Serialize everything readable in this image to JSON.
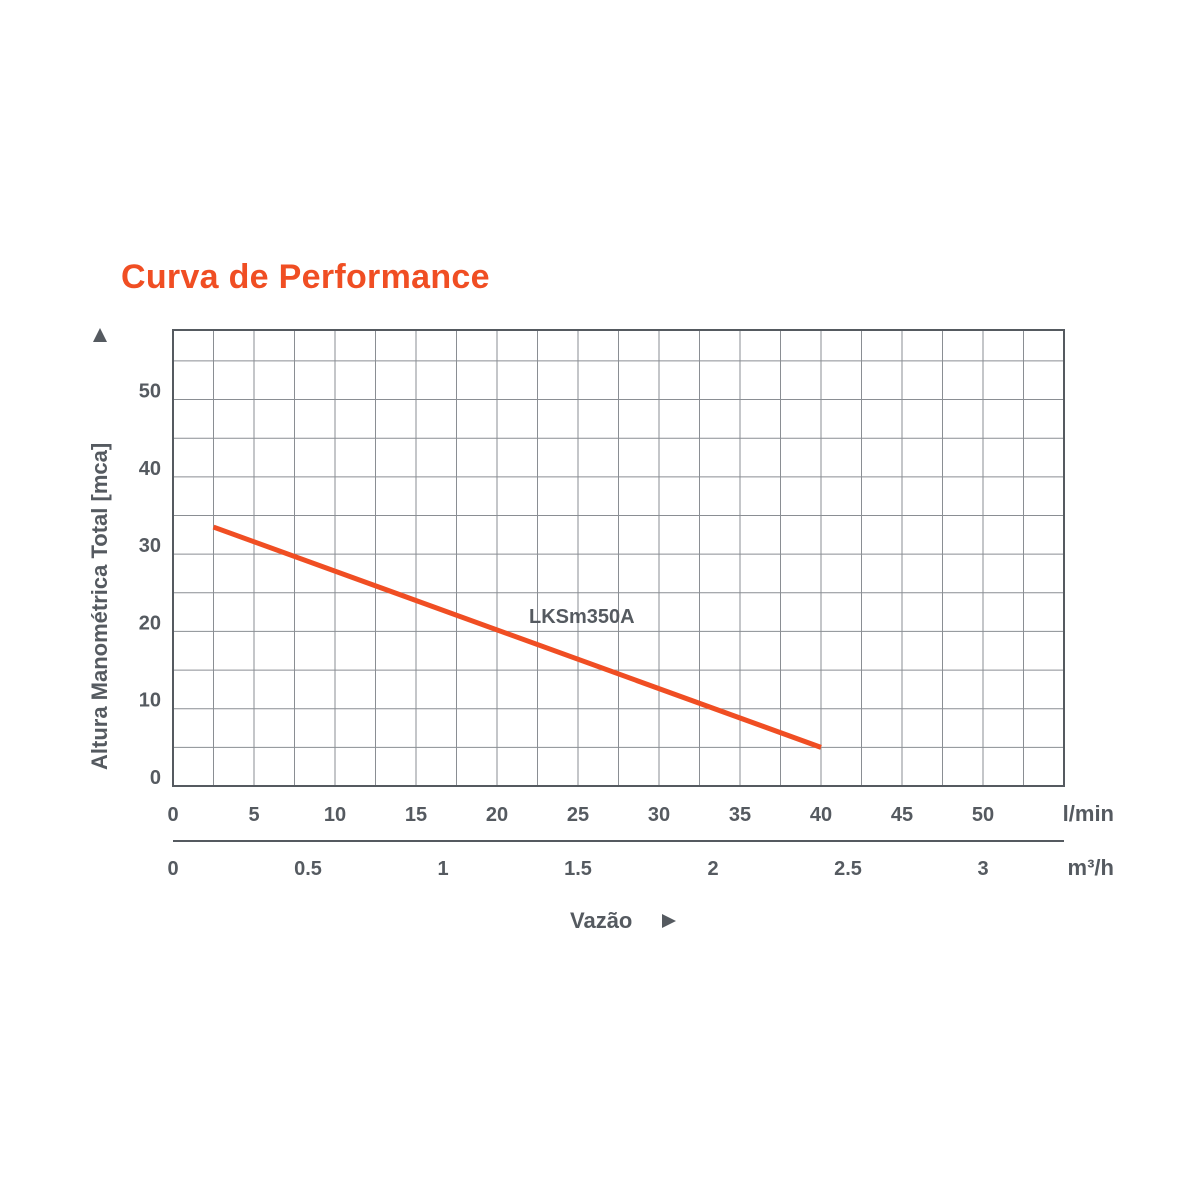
{
  "chart_data": {
    "type": "line",
    "title": "Curva de Performance",
    "xlabel": "Vazão",
    "ylabel": "Altura Manométrica Total [mca]",
    "x_unit_primary": "l/min",
    "x_unit_secondary": "m³/h",
    "xlim": [
      0,
      55
    ],
    "ylim": [
      0,
      59
    ],
    "x_ticks": [
      0,
      5,
      10,
      15,
      20,
      25,
      30,
      35,
      40,
      45,
      50
    ],
    "x2_ticks": [
      "0",
      "0.5",
      "1",
      "1.5",
      "2",
      "2.5",
      "3"
    ],
    "x2_ticks_values": [
      0,
      0.5,
      1,
      1.5,
      2,
      2.5,
      3
    ],
    "y_ticks": [
      0,
      10,
      20,
      30,
      40,
      50
    ],
    "grid": true,
    "series": [
      {
        "name": "LKSm350A",
        "color": "#f04e23",
        "x": [
          2.5,
          40
        ],
        "y": [
          33.5,
          5
        ]
      }
    ]
  }
}
